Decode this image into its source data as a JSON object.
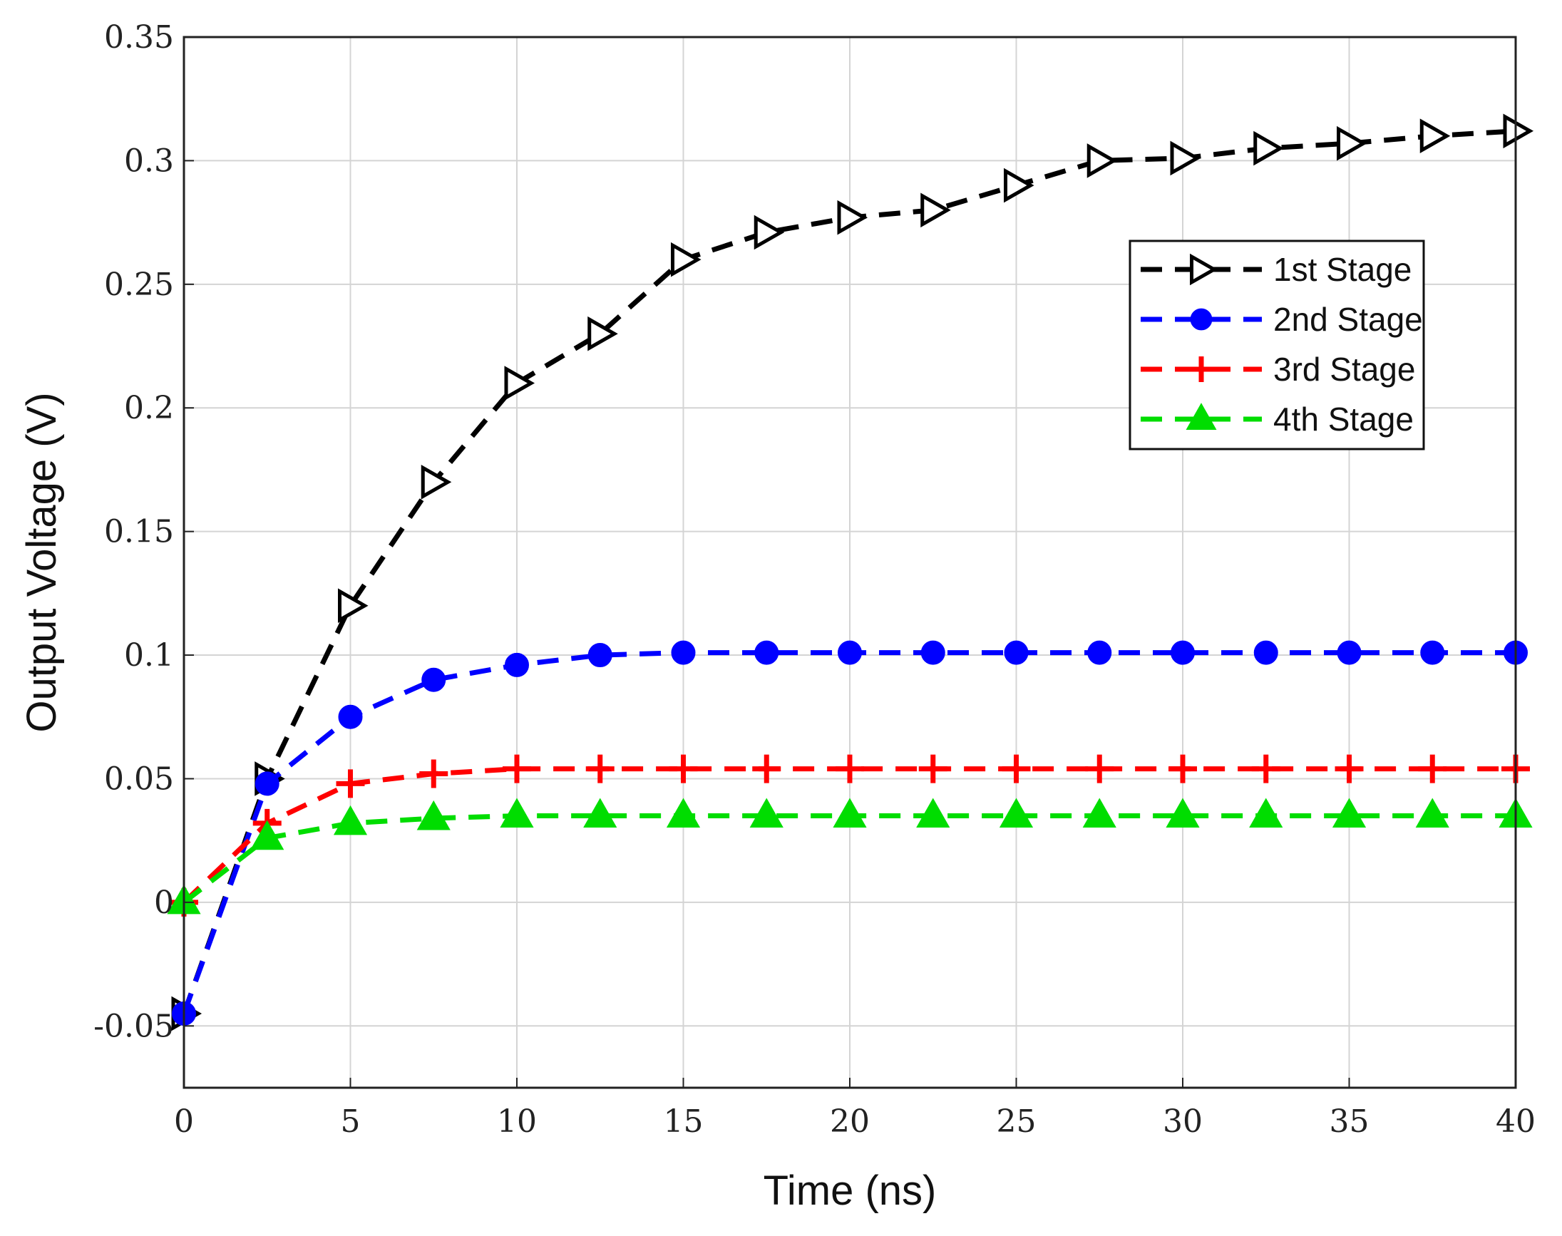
{
  "chart_data": {
    "type": "line",
    "title": "",
    "xlabel": "Time (ns)",
    "ylabel": "Output Voltage (V)",
    "xlim": [
      0,
      40
    ],
    "ylim": [
      -0.075,
      0.35
    ],
    "xticks": [
      0,
      5,
      10,
      15,
      20,
      25,
      30,
      35,
      40
    ],
    "xtick_labels": [
      "0",
      "5",
      "10",
      "15",
      "20",
      "25",
      "30",
      "35",
      "40"
    ],
    "yticks": [
      -0.05,
      0,
      0.05,
      0.1,
      0.15,
      0.2,
      0.25,
      0.3,
      0.35
    ],
    "ytick_labels": [
      "-0.05",
      "0",
      "0.05",
      "0.1",
      "0.15",
      "0.2",
      "0.25",
      "0.3",
      "0.35"
    ],
    "grid": true,
    "legend_position": "upper-right",
    "x": [
      0,
      2.5,
      5,
      7.5,
      10,
      12.5,
      15,
      17.5,
      20,
      22.5,
      25,
      27.5,
      30,
      32.5,
      35,
      37.5,
      40
    ],
    "series": [
      {
        "name": "1st Stage",
        "color": "#000000",
        "marker": "triangle-right",
        "values": [
          -0.045,
          0.05,
          0.12,
          0.17,
          0.21,
          0.23,
          0.26,
          0.271,
          0.277,
          0.28,
          0.29,
          0.3,
          0.301,
          0.305,
          0.307,
          0.31,
          0.312
        ]
      },
      {
        "name": "2nd Stage",
        "color": "#0000ff",
        "marker": "circle",
        "values": [
          -0.045,
          0.048,
          0.075,
          0.09,
          0.096,
          0.1,
          0.101,
          0.101,
          0.101,
          0.101,
          0.101,
          0.101,
          0.101,
          0.101,
          0.101,
          0.101,
          0.101
        ]
      },
      {
        "name": "3rd Stage",
        "color": "#ff0000",
        "marker": "plus",
        "values": [
          0,
          0.032,
          0.048,
          0.052,
          0.054,
          0.054,
          0.054,
          0.054,
          0.054,
          0.054,
          0.054,
          0.054,
          0.054,
          0.054,
          0.054,
          0.054,
          0.054
        ]
      },
      {
        "name": "4th Stage",
        "color": "#00dd00",
        "marker": "triangle-up",
        "values": [
          0,
          0.026,
          0.032,
          0.034,
          0.035,
          0.035,
          0.035,
          0.035,
          0.035,
          0.035,
          0.035,
          0.035,
          0.035,
          0.035,
          0.035,
          0.035,
          0.035
        ]
      }
    ]
  }
}
